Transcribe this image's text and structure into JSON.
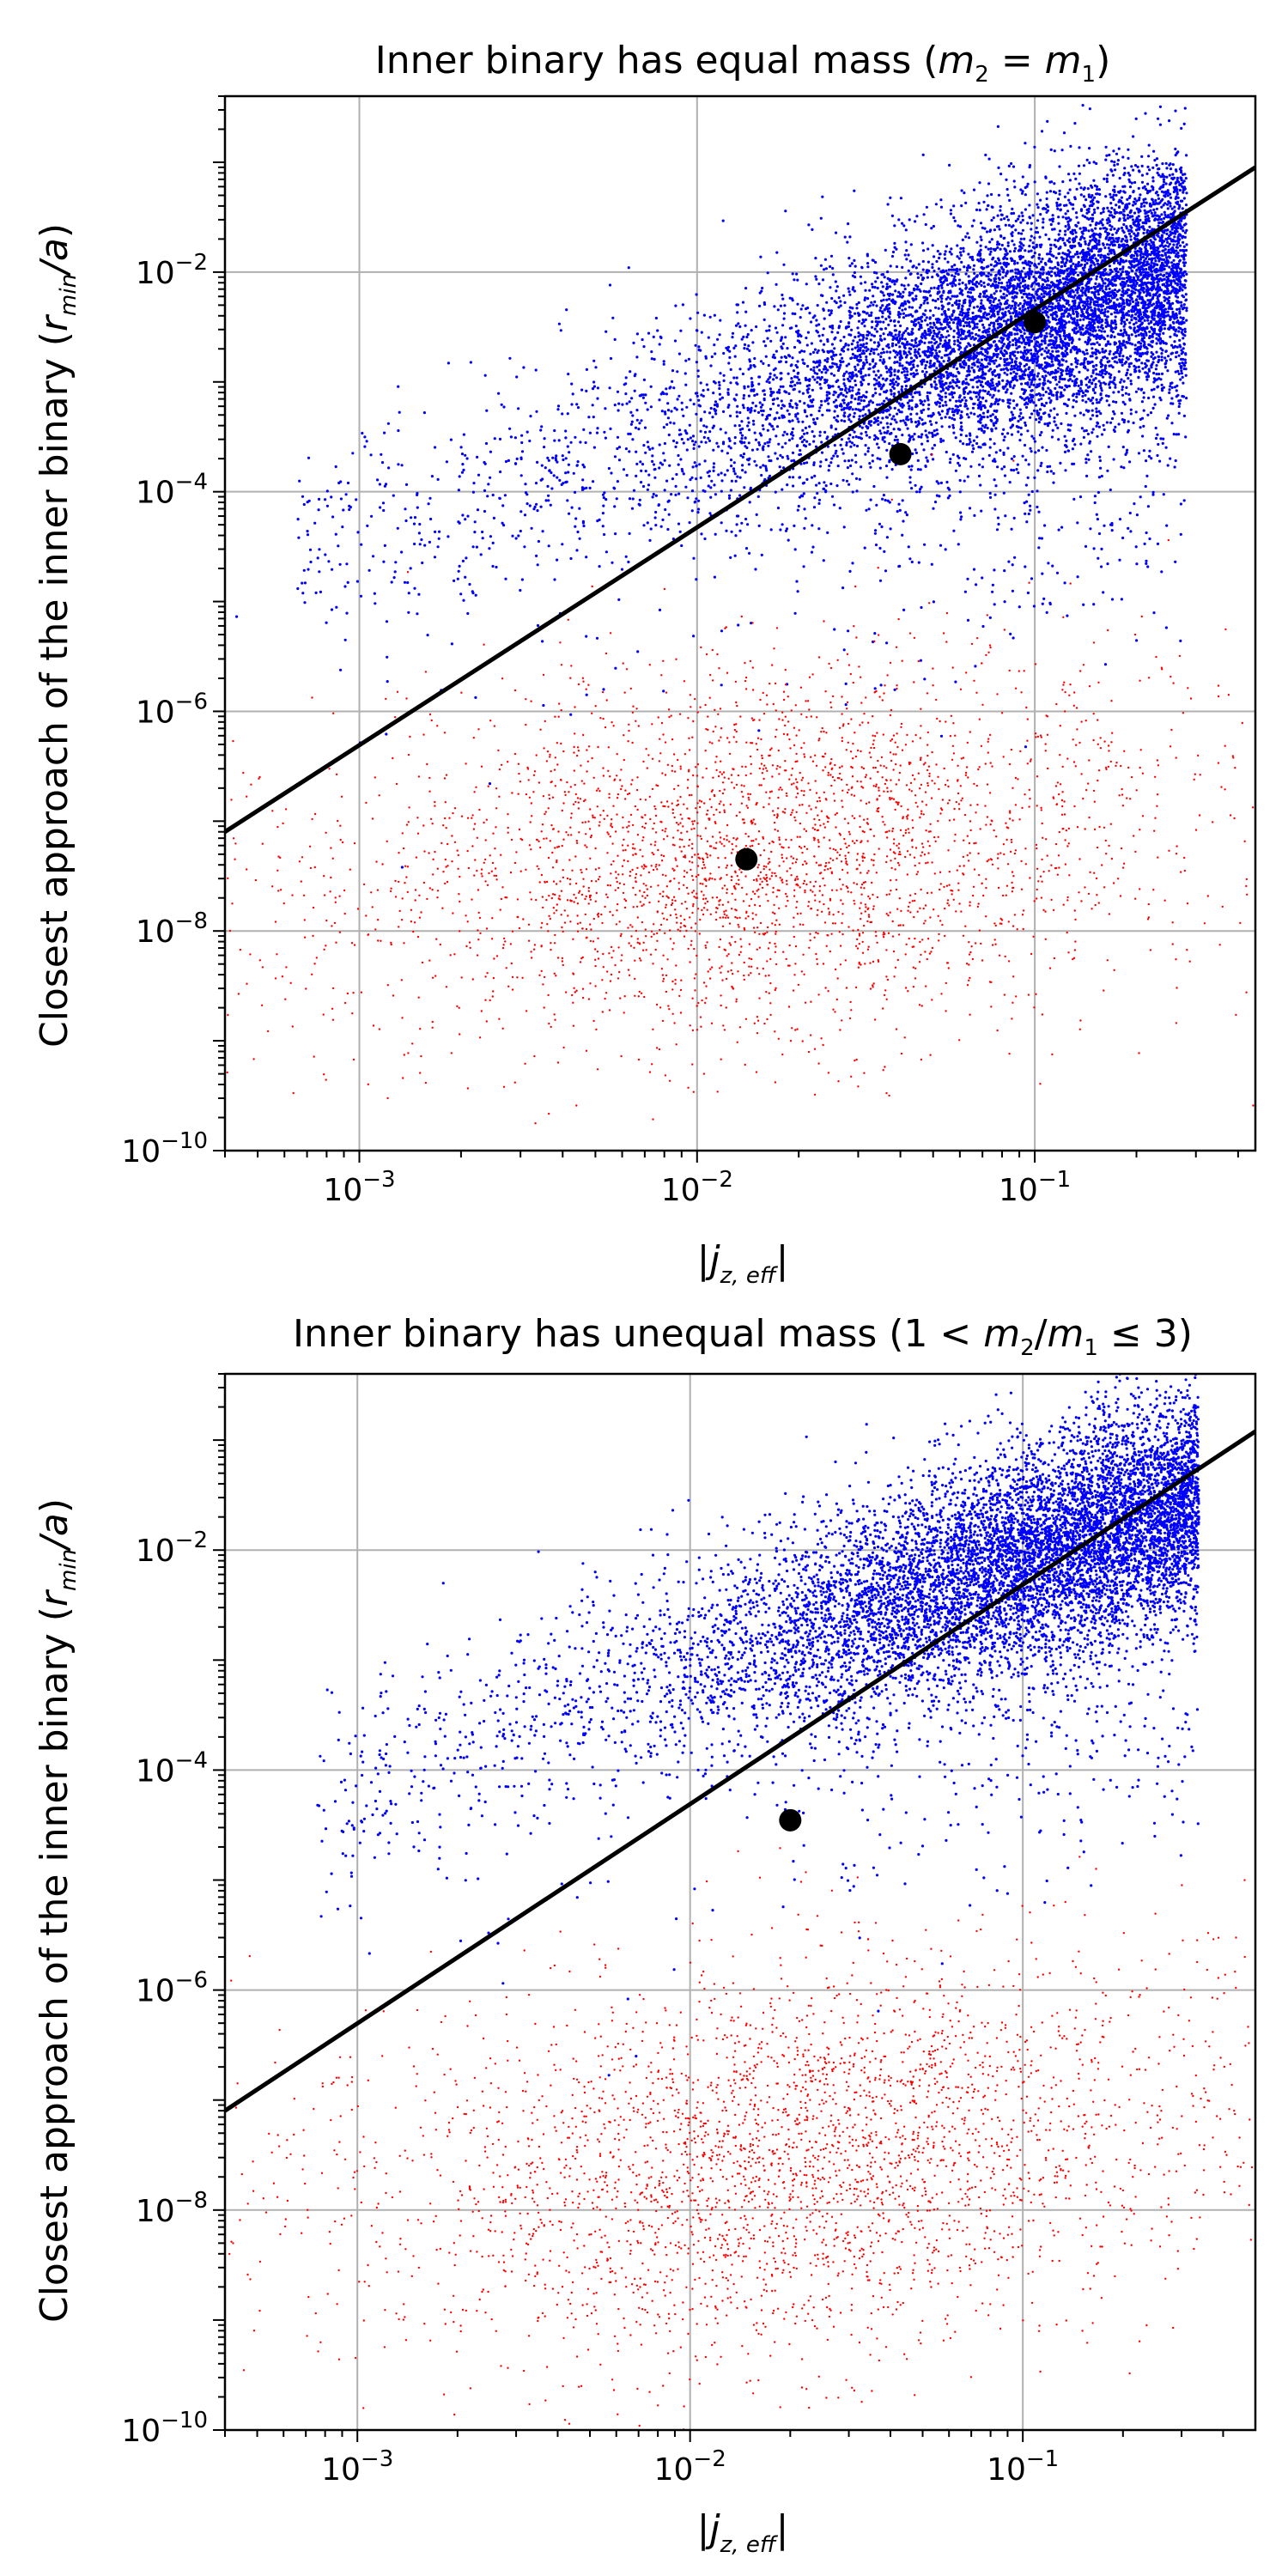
{
  "chart_data": [
    {
      "type": "scatter",
      "title": "Inner binary has equal mass (m₂ = m₁)",
      "xlabel": "|j̄z, eff|",
      "ylabel": "Closest approach of the inner binary (r_min/a)",
      "xscale": "log",
      "yscale": "log",
      "xlim": [
        0.0004,
        0.45
      ],
      "ylim": [
        1e-10,
        0.4
      ],
      "grid": true,
      "x_ticks": [
        "10^-3",
        "10^-2",
        "10^-1"
      ],
      "y_ticks": [
        "10^-10",
        "10^-8",
        "10^-6",
        "10^-4",
        "10^-2"
      ],
      "fit_line": {
        "x": [
          0.0004,
          0.45
        ],
        "y": [
          8e-08,
          0.09
        ],
        "color": "#000000"
      },
      "highlight_points": [
        {
          "x": 0.1,
          "y": 0.0035
        },
        {
          "x": 0.04,
          "y": 0.00022
        },
        {
          "x": 0.014,
          "y": 4.5e-08
        }
      ],
      "series": [
        {
          "name": "blue",
          "color": "#0000ff",
          "count": 9000,
          "center": {
            "x": 0.1,
            "y": 0.004
          },
          "trend_slope": 1.0,
          "spread": {
            "logx": 0.42,
            "logy": 0.55
          }
        },
        {
          "name": "red",
          "color": "#ff0000",
          "count": 3200,
          "center": {
            "x": 0.015,
            "y": 5e-08
          },
          "trend_slope": 0.3,
          "spread": {
            "logx": 0.55,
            "logy": 0.85
          }
        }
      ]
    },
    {
      "type": "scatter",
      "title": "Inner binary has unequal mass (1 < m₂/m₁ ≤ 3)",
      "xlabel": "|j̄z, eff|",
      "ylabel": "Closest approach of the inner binary (r_min/a)",
      "xscale": "log",
      "yscale": "log",
      "xlim": [
        0.0004,
        0.5
      ],
      "ylim": [
        1e-10,
        0.4
      ],
      "grid": true,
      "x_ticks": [
        "10^-3",
        "10^-2",
        "10^-1"
      ],
      "y_ticks": [
        "10^-10",
        "10^-8",
        "10^-6",
        "10^-4",
        "10^-2"
      ],
      "fit_line": {
        "x": [
          0.0004,
          0.5
        ],
        "y": [
          8e-08,
          0.12
        ],
        "color": "#000000"
      },
      "highlight_points": [
        {
          "x": 0.02,
          "y": 3.5e-05
        }
      ],
      "series": [
        {
          "name": "blue",
          "color": "#0000ff",
          "count": 9000,
          "center": {
            "x": 0.12,
            "y": 0.01
          },
          "trend_slope": 1.0,
          "spread": {
            "logx": 0.45,
            "logy": 0.5
          }
        },
        {
          "name": "red",
          "color": "#ff0000",
          "count": 3200,
          "center": {
            "x": 0.02,
            "y": 3e-08
          },
          "trend_slope": 0.3,
          "spread": {
            "logx": 0.6,
            "logy": 0.9
          }
        }
      ]
    }
  ]
}
